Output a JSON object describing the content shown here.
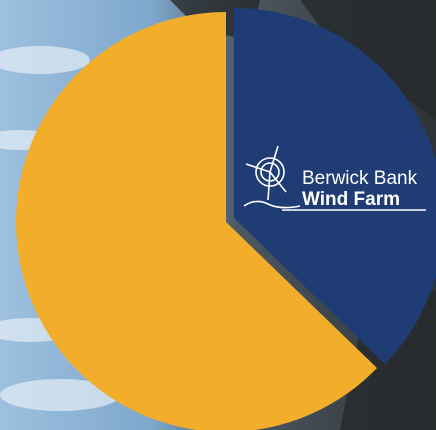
{
  "logo": {
    "line1": "Berwick Bank",
    "line2": "Wind Farm"
  }
}
